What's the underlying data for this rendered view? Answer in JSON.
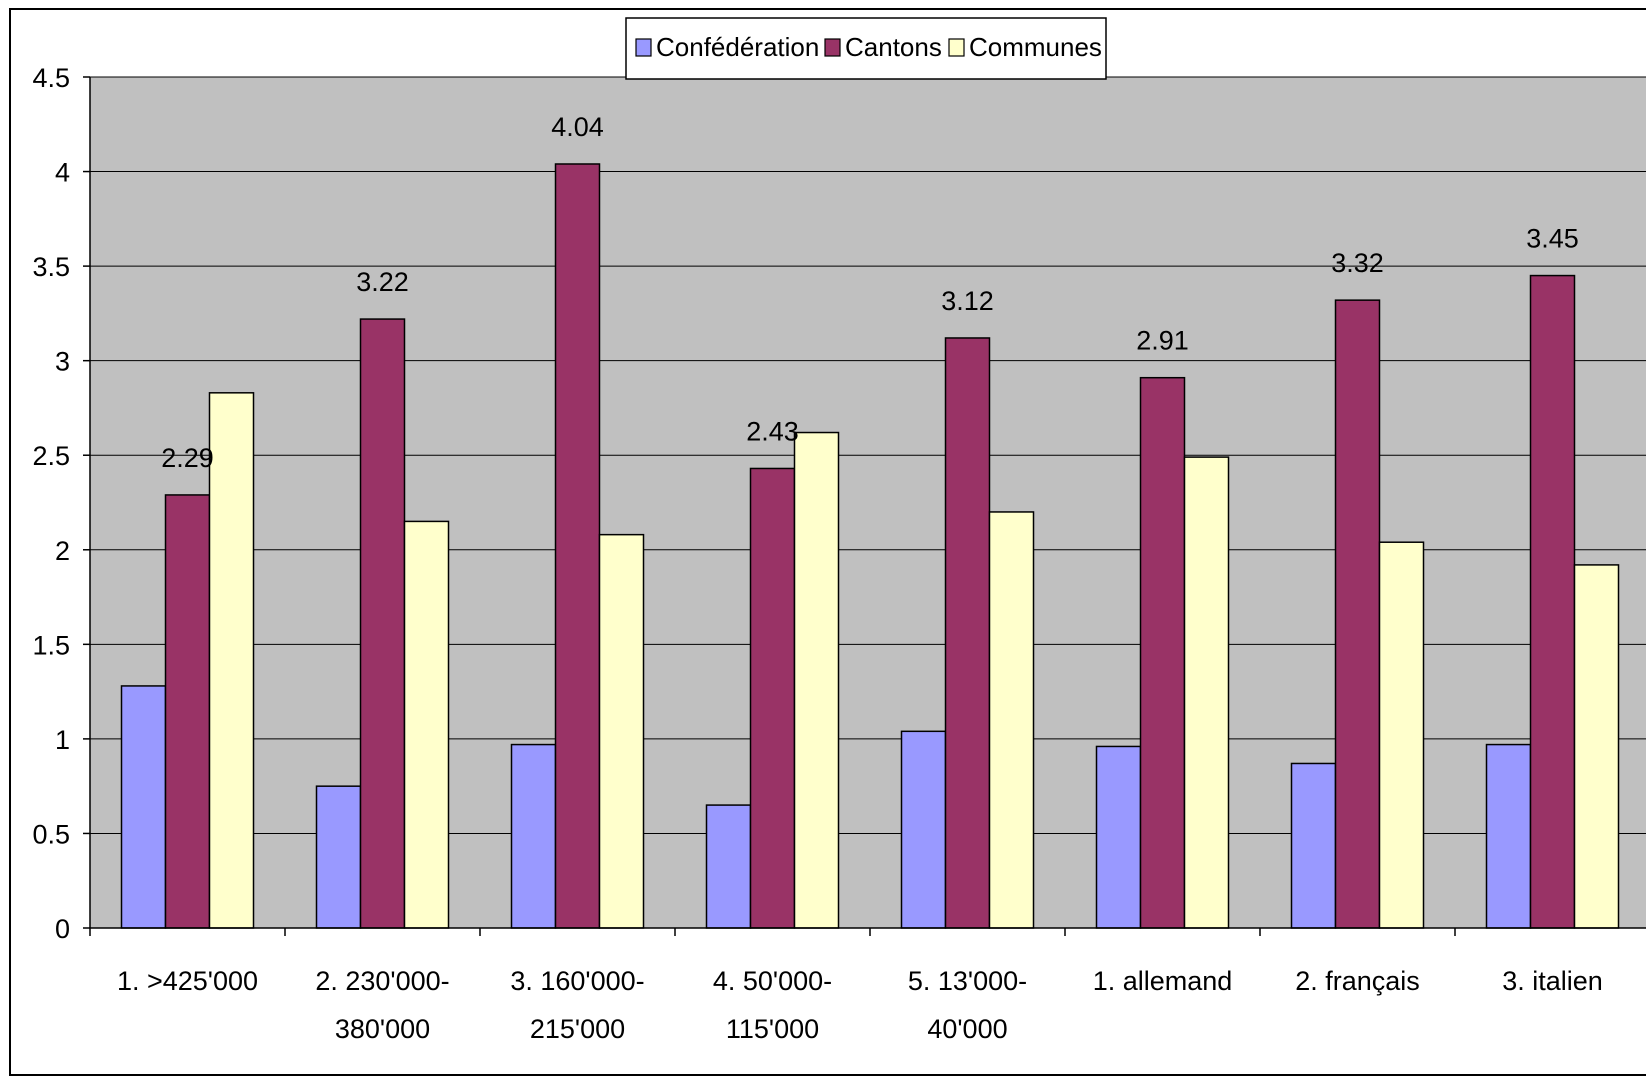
{
  "chart_data": {
    "type": "bar",
    "categories": [
      [
        "1. >425'000"
      ],
      [
        "2. 230'000-",
        "380'000"
      ],
      [
        "3. 160'000-",
        "215'000"
      ],
      [
        "4. 50'000-",
        "115'000"
      ],
      [
        "5. 13'000-",
        "40'000"
      ],
      [
        "1. allemand"
      ],
      [
        "2. français"
      ],
      [
        "3. italien"
      ]
    ],
    "series": [
      {
        "name": "Confédération",
        "color": "#9999ff",
        "values": [
          1.28,
          0.75,
          0.97,
          0.65,
          1.04,
          0.96,
          0.87,
          0.97
        ]
      },
      {
        "name": "Cantons",
        "color": "#993366",
        "values": [
          2.29,
          3.22,
          4.04,
          2.43,
          3.12,
          2.91,
          3.32,
          3.45
        ]
      },
      {
        "name": "Communes",
        "color": "#ffffcc",
        "values": [
          2.83,
          2.15,
          2.08,
          2.62,
          2.2,
          2.49,
          2.04,
          1.92
        ]
      }
    ],
    "data_labels": {
      "series": "Cantons",
      "labels": [
        "2.29",
        "3.22",
        "4.04",
        "2.43",
        "3.12",
        "2.91",
        "3.32",
        "3.45"
      ]
    },
    "y_ticks": [
      "0",
      "0.5",
      "1",
      "1.5",
      "2",
      "2.5",
      "3",
      "3.5",
      "4",
      "4.5"
    ],
    "ylim": [
      0,
      4.5
    ],
    "grid": true,
    "plot_background": "#c0c0c0",
    "legend_position": "top-center",
    "title": "",
    "xlabel": "",
    "ylabel": ""
  }
}
